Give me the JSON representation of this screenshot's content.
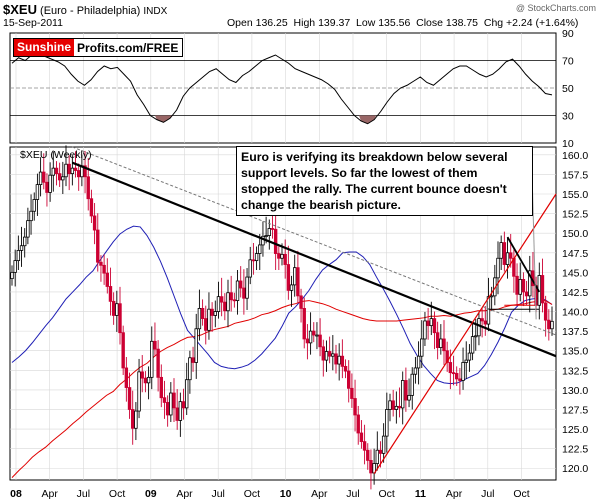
{
  "header": {
    "symbol": "$XEU",
    "name": "(Euro - Philadelphia)",
    "exchange": "INDX",
    "date": "15-Sep-2011",
    "ohlc": "Open 136.25  High 139.37  Low 135.56  Close 138.75  Chg +2.24 (+1.64%)",
    "watermark": "@ StockCharts.com"
  },
  "brand": {
    "red_part": "Sunshine",
    "rest": "Profits.com/FREE"
  },
  "annotation": "Euro is verifying its breakdown below several support levels. So far the lowest of them stopped the rally. The current bounce doesn't change the bearish picture.",
  "weekly_label": "$XEU (Weekly)",
  "chart_data": [
    {
      "type": "line",
      "title": "",
      "ylim": [
        10,
        90
      ],
      "y_ticks": [
        10,
        30,
        50,
        70,
        90
      ],
      "reference_lines": [
        30,
        50,
        70
      ],
      "series": [
        {
          "values": [
            68,
            72,
            70,
            74,
            76,
            73,
            71,
            69,
            66,
            60,
            55,
            52,
            56,
            62,
            66,
            64,
            65,
            60,
            55,
            45,
            38,
            30,
            27,
            25,
            28,
            34,
            44,
            50,
            54,
            58,
            62,
            64,
            60,
            56,
            54,
            59,
            62,
            66,
            70,
            72,
            74,
            71,
            68,
            64,
            62,
            60,
            58,
            56,
            53,
            49,
            42,
            36,
            30,
            26,
            24,
            27,
            33,
            40,
            46,
            50,
            52,
            55,
            58,
            54,
            52,
            56,
            60,
            64,
            66,
            66,
            63,
            60,
            58,
            60,
            64,
            69,
            71,
            66,
            60,
            55,
            51,
            46,
            45
          ]
        }
      ],
      "colors": {
        "line": "#000000",
        "oversold_fill": "#996666"
      }
    },
    {
      "type": "candlestick",
      "title": "",
      "x_ticks": [
        "08",
        "Apr",
        "Jul",
        "Oct",
        "09",
        "Apr",
        "Jul",
        "Oct",
        "10",
        "Apr",
        "Jul",
        "Oct",
        "11",
        "Apr",
        "Jul",
        "Oct"
      ],
      "ylim": [
        118.5,
        161
      ],
      "y_ticks": [
        120.0,
        122.5,
        125.0,
        127.5,
        130.0,
        132.5,
        135.0,
        137.5,
        140.0,
        142.5,
        145.0,
        147.5,
        150.0,
        152.5,
        155.0,
        157.5,
        160.0
      ],
      "close": [
        145.0,
        146.5,
        147.8,
        148.4,
        149.5,
        151.6,
        152.8,
        154.3,
        156.2,
        157.8,
        156.5,
        155.2,
        157.4,
        158.3,
        157.6,
        156.8,
        157.2,
        158.8,
        157.6,
        158.3,
        158.0,
        157.2,
        158.6,
        157.2,
        154.4,
        152.2,
        150.4,
        146.3,
        145.9,
        144.9,
        143.2,
        141.3,
        139.5,
        141.0,
        137.3,
        132.8,
        130.3,
        127.5,
        125.1,
        127.3,
        132.3,
        131.5,
        130.9,
        131.6,
        136.2,
        135.2,
        131.6,
        129.0,
        128.4,
        126.8,
        129.6,
        127.7,
        126.1,
        128.5,
        127.7,
        131.3,
        134.1,
        133.5,
        137.8,
        140.4,
        139.1,
        137.6,
        140.3,
        139.5,
        140.0,
        141.9,
        141.2,
        140.1,
        142.4,
        141.5,
        141.4,
        143.9,
        143.0,
        141.7,
        144.4,
        146.6,
        146.5,
        147.4,
        148.5,
        149.6,
        149.7,
        150.6,
        150.5,
        147.4,
        146.8,
        147.3,
        146.0,
        142.7,
        143.4,
        145.6,
        142.0,
        140.4,
        136.5,
        136.0,
        137.5,
        137.0,
        137.0,
        135.5,
        133.8,
        134.9,
        134.3,
        134.6,
        133.3,
        134.3,
        133.0,
        132.4,
        130.2,
        128.9,
        126.8,
        124.5,
        123.4,
        122.3,
        121.0,
        119.4,
        120.6,
        122.3,
        121.9,
        124.1,
        127.5,
        128.6,
        127.5,
        127.9,
        127.7,
        131.2,
        128.7,
        129.3,
        132.0,
        132.8,
        134.3,
        136.5,
        138.8,
        138.2,
        139.1,
        137.3,
        135.4,
        136.5,
        135.0,
        133.5,
        132.2,
        132.1,
        131.4,
        131.2,
        133.5,
        133.8,
        134.7,
        136.8,
        136.9,
        139.1,
        138.8,
        138.4,
        141.9,
        142.0,
        144.3,
        146.8,
        148.8,
        146.0,
        147.5,
        146.8,
        144.5,
        142.2,
        144.1,
        142.5,
        142.0,
        145.2,
        143.3,
        140.8,
        144.6,
        141.1,
        138.9,
        137.8,
        138.75
      ],
      "series": [
        {
          "kind": "sma-short",
          "color": "#1f1fb5",
          "values": [
            133.5,
            134.2,
            135.0,
            136.0,
            137.1,
            138.2,
            139.2,
            140.4,
            141.6,
            142.5,
            143.4,
            144.4,
            145.2,
            146.5,
            147.7,
            148.9,
            149.9,
            150.5,
            150.9,
            150.8,
            149.7,
            148.2,
            146.4,
            144.3,
            142.0,
            139.7,
            137.6,
            136.6,
            135.6,
            134.6,
            133.5,
            133.0,
            132.8,
            132.7,
            132.9,
            133.2,
            133.8,
            134.6,
            135.6,
            136.6,
            138.1,
            139.8,
            140.6,
            141.6,
            142.7,
            144.1,
            145.3,
            146.0,
            146.6,
            147.5,
            147.6,
            147.6,
            147.0,
            146.0,
            144.4,
            142.9,
            141.3,
            139.6,
            137.8,
            135.9,
            134.4,
            133.1,
            132.1,
            131.2,
            130.9,
            130.8,
            130.9,
            131.3,
            131.7,
            132.1,
            133.1,
            134.5,
            136.1,
            137.9,
            139.9,
            140.8,
            141.4,
            141.6,
            141.7,
            141.5,
            140.9
          ]
        },
        {
          "kind": "sma-long",
          "color": "#e00000",
          "values": [
            118.8,
            119.7,
            120.5,
            121.4,
            122.1,
            122.7,
            123.5,
            124.2,
            124.9,
            125.7,
            126.4,
            127.2,
            127.9,
            128.6,
            129.3,
            129.8,
            130.7,
            131.4,
            132.2,
            132.9,
            133.4,
            134.2,
            134.9,
            135.4,
            135.8,
            136.3,
            136.7,
            136.8,
            137.0,
            137.4,
            137.7,
            137.9,
            138.1,
            138.5,
            138.7,
            138.9,
            139.2,
            139.6,
            139.8,
            140.1,
            140.5,
            140.8,
            141.0,
            141.3,
            141.4,
            141.2,
            141.0,
            140.7,
            140.3,
            140.0,
            139.7,
            139.4,
            139.1,
            138.9,
            138.8,
            138.8,
            138.8,
            138.8,
            138.9,
            139.0,
            139.1,
            139.2,
            139.4,
            139.4,
            139.5,
            139.4,
            139.6,
            139.8,
            139.9,
            140.1,
            140.1,
            140.2,
            140.3,
            140.6,
            140.8,
            140.9,
            141.0,
            141.2,
            141.3,
            141.4,
            140.9
          ]
        }
      ],
      "colors": {
        "up": "#000000",
        "down": "#cc0033",
        "trend_black": "#000000",
        "trend_red": "#e00000",
        "grid": "#d8d8d8"
      }
    }
  ]
}
